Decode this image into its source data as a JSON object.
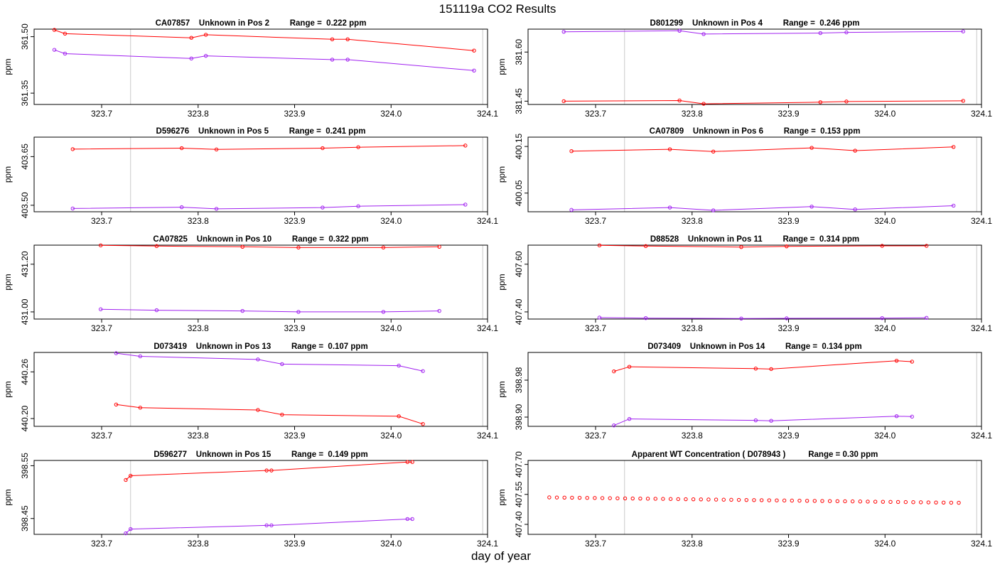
{
  "page_title": "151119a  CO2 Results",
  "x_axis_caption": "day of year",
  "chart_data": [
    {
      "type": "line",
      "title": "CA07857    Unknown in Pos 2         Range =  0.222 ppm",
      "ylabel": "ppm",
      "xlabel": "",
      "xlim": [
        323.63,
        324.1
      ],
      "ylim": [
        361.32,
        361.52
      ],
      "yticks": [
        361.35,
        361.5
      ],
      "xticks": [
        323.7,
        323.8,
        323.9,
        324.0,
        324.1
      ],
      "vlines": [
        323.73,
        324.095
      ],
      "series": [
        {
          "name": "series-red",
          "color": "#ff0000",
          "x": [
            323.651,
            323.662,
            323.793,
            323.808,
            323.939,
            323.955,
            324.086
          ],
          "y": [
            361.518,
            361.508,
            361.497,
            361.505,
            361.493,
            361.493,
            361.463
          ]
        },
        {
          "name": "series-purple",
          "color": "#a020f0",
          "x": [
            323.651,
            323.662,
            323.793,
            323.808,
            323.939,
            323.955,
            324.086
          ],
          "y": [
            361.465,
            361.455,
            361.442,
            361.449,
            361.439,
            361.439,
            361.41
          ]
        }
      ]
    },
    {
      "type": "line",
      "title": "D801299    Unknown in Pos 4         Range =  0.246 ppm",
      "ylabel": "ppm",
      "xlabel": "",
      "xlim": [
        323.63,
        324.1
      ],
      "ylim": [
        381.44,
        381.67
      ],
      "yticks": [
        381.45,
        381.6
      ],
      "xticks": [
        323.7,
        323.8,
        323.9,
        324.0,
        324.1
      ],
      "vlines": [
        323.73,
        324.095
      ],
      "series": [
        {
          "name": "series-purple",
          "color": "#a020f0",
          "x": [
            323.667,
            323.787,
            323.812,
            323.933,
            323.96,
            324.081
          ],
          "y": [
            381.662,
            381.665,
            381.655,
            381.658,
            381.66,
            381.663
          ]
        },
        {
          "name": "series-red",
          "color": "#ff0000",
          "x": [
            323.667,
            323.787,
            323.812,
            323.933,
            323.96,
            324.081
          ],
          "y": [
            381.45,
            381.452,
            381.442,
            381.447,
            381.449,
            381.451
          ]
        }
      ]
    },
    {
      "type": "line",
      "title": "D596276    Unknown in Pos 5         Range =  0.241 ppm",
      "ylabel": "ppm",
      "xlabel": "",
      "xlim": [
        323.63,
        324.1
      ],
      "ylim": [
        403.48,
        403.71
      ],
      "yticks": [
        403.5,
        403.65
      ],
      "xticks": [
        323.7,
        323.8,
        323.9,
        324.0,
        324.1
      ],
      "vlines": [
        323.73,
        324.095
      ],
      "series": [
        {
          "name": "series-red",
          "color": "#ff0000",
          "x": [
            323.67,
            323.783,
            323.819,
            323.929,
            323.966,
            324.077
          ],
          "y": [
            403.673,
            403.676,
            403.672,
            403.676,
            403.679,
            403.684
          ]
        },
        {
          "name": "series-purple",
          "color": "#a020f0",
          "x": [
            323.67,
            323.783,
            323.819,
            323.929,
            323.966,
            324.077
          ],
          "y": [
            403.49,
            403.494,
            403.489,
            403.493,
            403.497,
            403.502
          ]
        }
      ]
    },
    {
      "type": "line",
      "title": "CA07809    Unknown in Pos 6         Range =  0.153 ppm",
      "ylabel": "ppm",
      "xlabel": "",
      "xlim": [
        323.63,
        324.1
      ],
      "ylim": [
        400.01,
        400.17
      ],
      "yticks": [
        400.05,
        400.15
      ],
      "xticks": [
        323.7,
        323.8,
        323.9,
        324.0,
        324.1
      ],
      "vlines": [
        323.73,
        324.095
      ],
      "series": [
        {
          "name": "series-red",
          "color": "#ff0000",
          "x": [
            323.675,
            323.777,
            323.822,
            323.924,
            323.969,
            324.071
          ],
          "y": [
            400.14,
            400.144,
            400.139,
            400.147,
            400.141,
            400.149
          ]
        },
        {
          "name": "series-purple",
          "color": "#a020f0",
          "x": [
            323.675,
            323.777,
            323.822,
            323.924,
            323.969,
            324.071
          ],
          "y": [
            400.014,
            400.019,
            400.013,
            400.021,
            400.015,
            400.023
          ]
        }
      ]
    },
    {
      "type": "line",
      "title": "CA07825    Unknown in Pos 10         Range =  0.322 ppm",
      "ylabel": "ppm",
      "xlabel": "",
      "xlim": [
        323.63,
        324.1
      ],
      "ylim": [
        430.97,
        431.28
      ],
      "yticks": [
        431.0,
        431.2
      ],
      "xticks": [
        323.7,
        323.8,
        323.9,
        324.0,
        324.1
      ],
      "vlines": [
        323.73,
        324.095
      ],
      "series": [
        {
          "name": "series-red",
          "color": "#ff0000",
          "x": [
            323.699,
            323.757,
            323.846,
            323.904,
            323.992,
            324.05
          ],
          "y": [
            431.279,
            431.276,
            431.273,
            431.27,
            431.27,
            431.273
          ]
        },
        {
          "name": "series-purple",
          "color": "#a020f0",
          "x": [
            323.699,
            323.757,
            323.846,
            323.904,
            323.992,
            324.05
          ],
          "y": [
            431.011,
            431.007,
            431.004,
            431.0,
            431.0,
            431.004
          ]
        }
      ]
    },
    {
      "type": "line",
      "title": "D88528    Unknown in Pos 11         Range =  0.314 ppm",
      "ylabel": "ppm",
      "xlabel": "",
      "xlim": [
        323.63,
        324.1
      ],
      "ylim": [
        407.37,
        407.68
      ],
      "yticks": [
        407.4,
        407.6
      ],
      "xticks": [
        323.7,
        323.8,
        323.9,
        324.0,
        324.1
      ],
      "vlines": [
        323.73,
        324.095
      ],
      "series": [
        {
          "name": "series-red",
          "color": "#ff0000",
          "x": [
            323.704,
            323.752,
            323.851,
            323.898,
            323.997,
            324.043
          ],
          "y": [
            407.679,
            407.676,
            407.672,
            407.675,
            407.677,
            407.677
          ]
        },
        {
          "name": "series-purple",
          "color": "#a020f0",
          "x": [
            323.704,
            323.752,
            323.851,
            323.898,
            323.997,
            324.043
          ],
          "y": [
            407.376,
            407.374,
            407.372,
            407.373,
            407.374,
            407.375
          ]
        }
      ]
    },
    {
      "type": "line",
      "title": "D073419    Unknown in Pos 13         Range =  0.107 ppm",
      "ylabel": "ppm",
      "xlabel": "",
      "xlim": [
        323.63,
        324.1
      ],
      "ylim": [
        440.19,
        440.285
      ],
      "yticks": [
        440.2,
        440.26
      ],
      "xticks": [
        323.7,
        323.8,
        323.9,
        324.0,
        324.1
      ],
      "vlines": [
        323.73,
        324.095
      ],
      "series": [
        {
          "name": "series-purple",
          "color": "#a020f0",
          "x": [
            323.715,
            323.74,
            323.862,
            323.887,
            324.008,
            324.033
          ],
          "y": [
            440.284,
            440.28,
            440.276,
            440.27,
            440.268,
            440.261
          ]
        },
        {
          "name": "series-red",
          "color": "#ff0000",
          "x": [
            323.715,
            323.74,
            323.862,
            323.887,
            324.008,
            324.033
          ],
          "y": [
            440.218,
            440.214,
            440.211,
            440.205,
            440.203,
            440.193
          ]
        }
      ]
    },
    {
      "type": "line",
      "title": "D073409    Unknown in Pos 14         Range =  0.134 ppm",
      "ylabel": "ppm",
      "xlabel": "",
      "xlim": [
        323.63,
        324.1
      ],
      "ylim": [
        398.88,
        399.04
      ],
      "yticks": [
        398.9,
        398.98
      ],
      "xticks": [
        323.7,
        323.8,
        323.9,
        324.0,
        324.1
      ],
      "vlines": [
        323.73,
        324.095
      ],
      "series": [
        {
          "name": "series-red",
          "color": "#ff0000",
          "x": [
            323.719,
            323.735,
            323.866,
            323.882,
            324.012,
            324.028
          ],
          "y": [
            398.999,
            399.009,
            399.005,
            399.004,
            399.022,
            399.02
          ]
        },
        {
          "name": "series-purple",
          "color": "#a020f0",
          "x": [
            323.719,
            323.735,
            323.866,
            323.882,
            324.012,
            324.028
          ],
          "y": [
            398.882,
            398.896,
            398.893,
            398.892,
            398.902,
            398.901
          ]
        }
      ]
    },
    {
      "type": "line",
      "title": "D596277    Unknown in Pos 15         Range =  0.149 ppm",
      "ylabel": "ppm",
      "xlabel": "",
      "xlim": [
        323.63,
        324.1
      ],
      "ylim": [
        398.42,
        398.56
      ],
      "yticks": [
        398.45,
        398.55
      ],
      "xticks": [
        323.7,
        323.8,
        323.9,
        324.0,
        324.1
      ],
      "vlines": [
        323.73,
        324.095
      ],
      "series": [
        {
          "name": "series-red",
          "color": "#ff0000",
          "x": [
            323.725,
            323.73,
            323.871,
            323.876,
            324.017,
            324.022
          ],
          "y": [
            398.523,
            398.531,
            398.541,
            398.541,
            398.557,
            398.557
          ]
        },
        {
          "name": "series-purple",
          "color": "#a020f0",
          "x": [
            323.725,
            323.73,
            323.871,
            323.876,
            324.017,
            324.022
          ],
          "y": [
            398.422,
            398.43,
            398.437,
            398.437,
            398.449,
            398.449
          ]
        }
      ]
    },
    {
      "type": "scatter",
      "title": "Apparent WT Concentration ( D078943 )          Range = 0.30 ppm",
      "ylabel": "ppm",
      "xlabel": "",
      "xlim": [
        323.63,
        324.1
      ],
      "ylim": [
        407.35,
        407.72
      ],
      "yticks": [
        407.4,
        407.55,
        407.7
      ],
      "ytick_labels": [
        "407.40",
        "407.55",
        "407.70"
      ],
      "xticks": [
        323.7,
        323.8,
        323.9,
        324.0,
        324.1
      ],
      "vlines": [
        323.73,
        324.095
      ],
      "series": [
        {
          "name": "series-red",
          "color": "#ff0000",
          "x_start": 323.652,
          "x_step": 0.00786,
          "count": 55,
          "y_start": 407.535,
          "y_end": 407.508
        }
      ]
    }
  ]
}
